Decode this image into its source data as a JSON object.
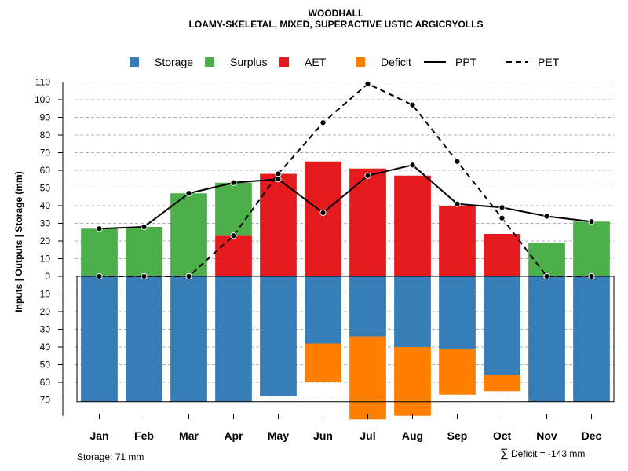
{
  "chart_data": {
    "type": "bar",
    "title": "WOODHALL",
    "subtitle": "LOAMY-SKELETAL, MIXED, SUPERACTIVE USTIC ARGICRYOLLS",
    "ylabel": "Inputs | Outputs | Storage    (mm)",
    "xlabel": "",
    "categories": [
      "Jan",
      "Feb",
      "Mar",
      "Apr",
      "May",
      "Jun",
      "Jul",
      "Aug",
      "Sep",
      "Oct",
      "Nov",
      "Dec"
    ],
    "ylim": [
      -71,
      110
    ],
    "y_ticks": [
      110,
      100,
      90,
      80,
      70,
      60,
      50,
      40,
      30,
      20,
      10,
      0,
      -10,
      -20,
      -30,
      -40,
      -50,
      -60,
      -70
    ],
    "y_tick_labels": [
      "110",
      "100",
      "90",
      "80",
      "70",
      "60",
      "50",
      "40",
      "30",
      "20",
      "10",
      "0",
      "10",
      "20",
      "30",
      "40",
      "50",
      "60",
      "70"
    ],
    "grid": true,
    "legend": {
      "position": "top",
      "entries": [
        {
          "label": "Storage",
          "kind": "square",
          "color": "#377EB8"
        },
        {
          "label": "Surplus",
          "kind": "square",
          "color": "#4DAF4A"
        },
        {
          "label": "AET",
          "kind": "square",
          "color": "#E41A1C"
        },
        {
          "label": "Deficit",
          "kind": "square",
          "color": "#FF7F00"
        },
        {
          "label": "PPT",
          "kind": "solid-line",
          "color": "#000000"
        },
        {
          "label": "PET",
          "kind": "dashed-line",
          "color": "#000000"
        }
      ]
    },
    "series": [
      {
        "name": "Storage",
        "color": "#377EB8",
        "values": [
          71,
          71,
          71,
          71,
          68,
          38,
          34,
          40,
          41,
          56,
          71,
          71
        ]
      },
      {
        "name": "Surplus",
        "color": "#4DAF4A",
        "values": [
          27,
          28,
          47,
          30,
          0,
          0,
          0,
          0,
          0,
          0,
          19,
          31
        ]
      },
      {
        "name": "AET",
        "color": "#E41A1C",
        "values": [
          0,
          0,
          0,
          23,
          58,
          65,
          61,
          57,
          40,
          24,
          0,
          0
        ]
      },
      {
        "name": "Deficit",
        "color": "#FF7F00",
        "values": [
          0,
          0,
          0,
          0,
          0,
          22,
          47,
          39,
          26,
          9,
          0,
          0
        ]
      },
      {
        "name": "PPT",
        "color": "#000000",
        "values": [
          27,
          28,
          47,
          53,
          55,
          36,
          57,
          63,
          41,
          39,
          34,
          31
        ]
      },
      {
        "name": "PET",
        "color": "#000000",
        "values": [
          0,
          0,
          0,
          23,
          58,
          87,
          109,
          97,
          65,
          33,
          0,
          0
        ]
      }
    ],
    "annotations": {
      "storage_note": "Storage: 71 mm",
      "deficit_symbol": "∑",
      "deficit_note": "Deficit = -143 mm"
    }
  }
}
